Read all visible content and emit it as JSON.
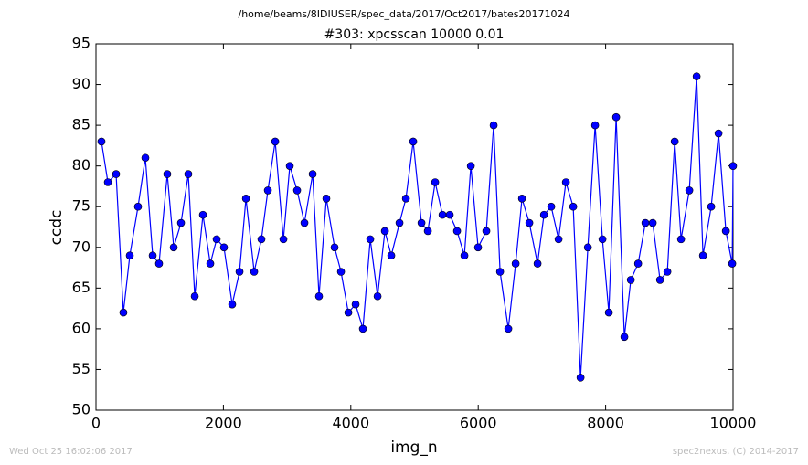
{
  "chart_data": {
    "type": "line",
    "suptitle": "/home/beams/8IDIUSER/spec_data/2017/Oct2017/bates20171024",
    "title": "#303: xpcsscan 10000 0.01",
    "x_label": "img_n",
    "y_label": "ccdc",
    "timestamp": "Wed Oct 25 16:02:06 2017",
    "credit": "spec2nexus, (C) 2014-2017",
    "xlim": [
      0,
      10000
    ],
    "xticks": [
      0,
      2000,
      4000,
      6000,
      8000,
      10000
    ],
    "ylim": [
      50,
      95
    ],
    "yticks": [
      50,
      55,
      60,
      65,
      70,
      75,
      80,
      85,
      90,
      95
    ],
    "grid": false,
    "series": [
      {
        "name": "ccdc",
        "color": "#0000ff",
        "x": [
          86,
          187,
          316,
          430,
          531,
          660,
          775,
          890,
          990,
          1119,
          1220,
          1335,
          1449,
          1550,
          1679,
          1794,
          1894,
          2009,
          2138,
          2253,
          2354,
          2483,
          2597,
          2698,
          2813,
          2942,
          3042,
          3157,
          3272,
          3401,
          3501,
          3616,
          3745,
          3846,
          3961,
          4075,
          4190,
          4305,
          4420,
          4535,
          4635,
          4764,
          4865,
          4979,
          5109,
          5209,
          5324,
          5439,
          5553,
          5668,
          5783,
          5884,
          5998,
          6127,
          6242,
          6343,
          6472,
          6587,
          6687,
          6802,
          6931,
          7032,
          7146,
          7261,
          7376,
          7491,
          7606,
          7721,
          7835,
          7950,
          8050,
          8165,
          8294,
          8395,
          8510,
          8624,
          8739,
          8854,
          8969,
          9084,
          9184,
          9313,
          9428,
          9528,
          9657,
          9772,
          9887,
          9987,
          10000
        ],
        "values": [
          83,
          78,
          79,
          62,
          69,
          75,
          81,
          69,
          68,
          79,
          70,
          73,
          79,
          64,
          74,
          68,
          71,
          70,
          63,
          67,
          76,
          67,
          71,
          77,
          83,
          71,
          80,
          77,
          73,
          79,
          64,
          76,
          70,
          67,
          62,
          63,
          60,
          71,
          64,
          72,
          69,
          73,
          76,
          83,
          73,
          72,
          78,
          74,
          74,
          72,
          69,
          80,
          70,
          72,
          85,
          67,
          60,
          68,
          76,
          73,
          68,
          74,
          75,
          71,
          78,
          75,
          54,
          70,
          85,
          71,
          62,
          86,
          59,
          66,
          68,
          73,
          73,
          66,
          67,
          83,
          71,
          77,
          91,
          69,
          75,
          84,
          72,
          68,
          80
        ]
      }
    ]
  }
}
